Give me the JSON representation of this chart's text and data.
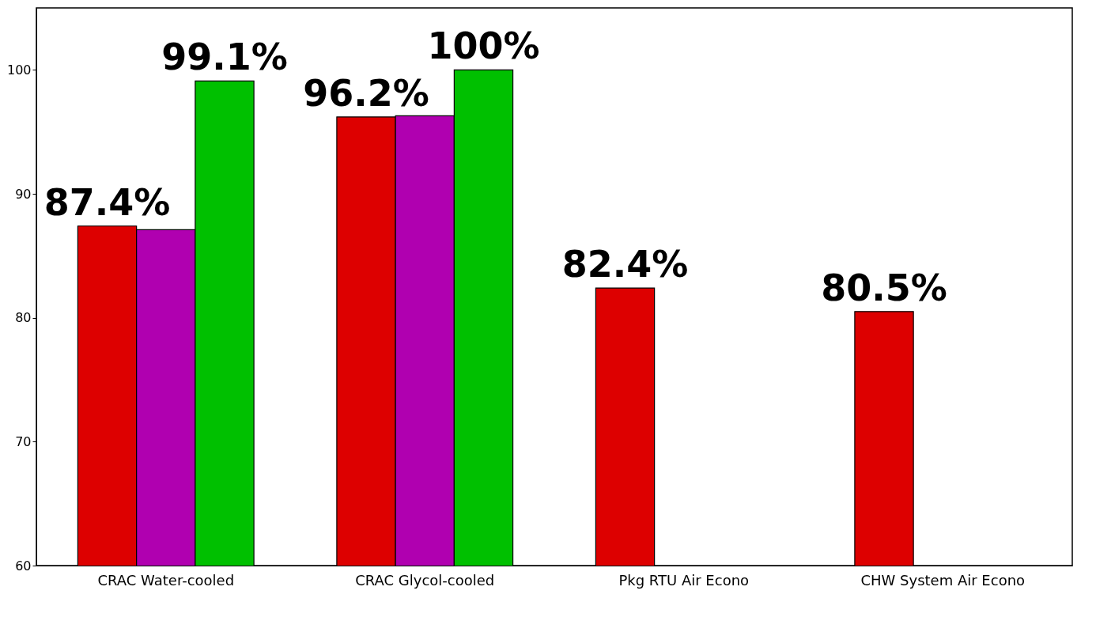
{
  "chart_data": {
    "type": "bar",
    "categories": [
      "CRAC Water-cooled",
      "CRAC Glycol-cooled",
      "Pkg RTU Air Econo",
      "CHW System Air Econo"
    ],
    "series": [
      {
        "color": "#dd0000",
        "values": [
          87.4,
          96.2,
          82.4,
          80.5
        ],
        "value_labels": [
          "87.4%",
          "96.2%",
          "82.4%",
          "80.5%"
        ]
      },
      {
        "color": "#b000b0",
        "values": [
          87.1,
          96.3,
          null,
          null
        ],
        "value_labels": [
          null,
          null,
          null,
          null
        ]
      },
      {
        "color": "#00c000",
        "values": [
          99.1,
          100,
          null,
          null
        ],
        "value_labels": [
          "99.1%",
          "100%",
          null,
          null
        ]
      }
    ],
    "ylim": [
      60,
      105
    ],
    "yticks": [
      60,
      70,
      80,
      90,
      100
    ],
    "grid": false,
    "legend": false
  }
}
